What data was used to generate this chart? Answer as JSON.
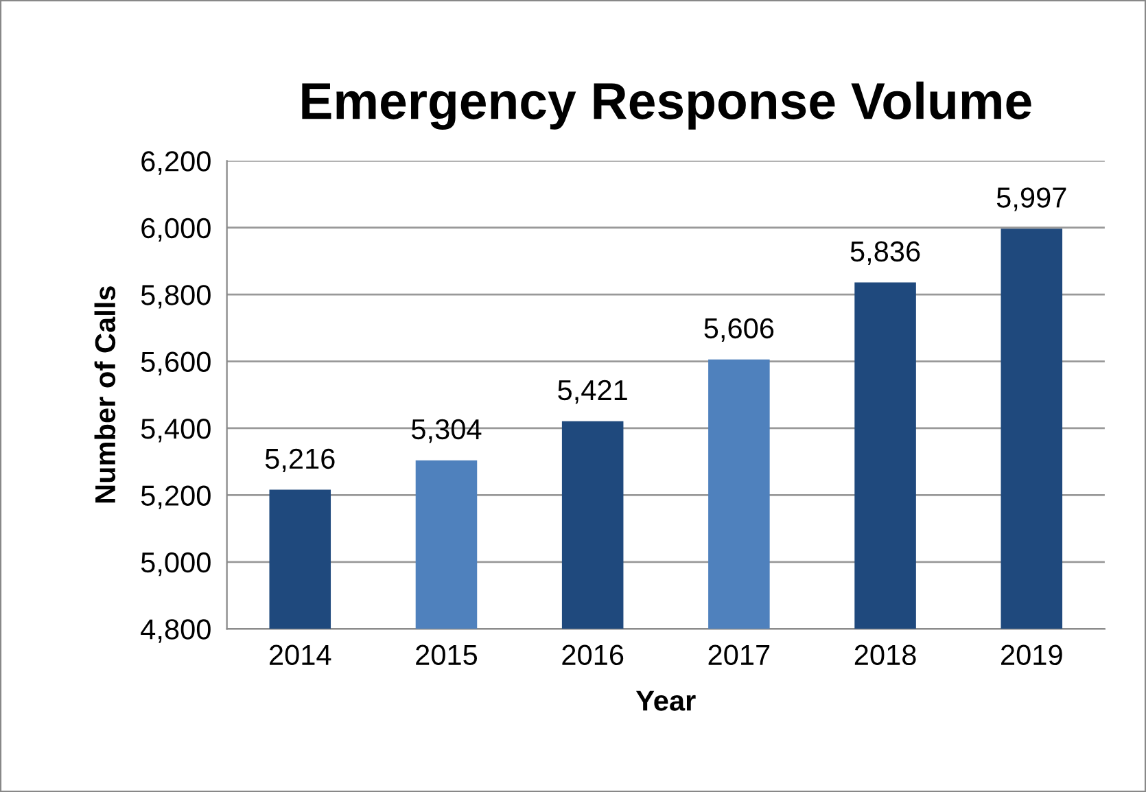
{
  "chart_data": {
    "type": "bar",
    "title": "Emergency Response Volume",
    "xlabel": "Year",
    "ylabel": "Number of Calls",
    "categories": [
      "2014",
      "2015",
      "2016",
      "2017",
      "2018",
      "2019"
    ],
    "values": [
      5216,
      5304,
      5421,
      5606,
      5836,
      5997
    ],
    "colors": [
      "#1f497d",
      "#4f81bd",
      "#1f497d",
      "#4f81bd",
      "#1f497d",
      "#1f497d"
    ],
    "value_labels": [
      "5,216",
      "5,304",
      "5,421",
      "5,606",
      "5,836",
      "5,997"
    ],
    "ylim": [
      4800,
      6200
    ],
    "yticks": [
      {
        "value": 4800,
        "label": "4,800"
      },
      {
        "value": 5000,
        "label": "5,000"
      },
      {
        "value": 5200,
        "label": "5,200"
      },
      {
        "value": 5400,
        "label": "5,400"
      },
      {
        "value": 5600,
        "label": "5,600"
      },
      {
        "value": 5800,
        "label": "5,800"
      },
      {
        "value": 6000,
        "label": "6,000"
      },
      {
        "value": 6200,
        "label": "6,200"
      }
    ],
    "grid": "y",
    "legend": false
  }
}
